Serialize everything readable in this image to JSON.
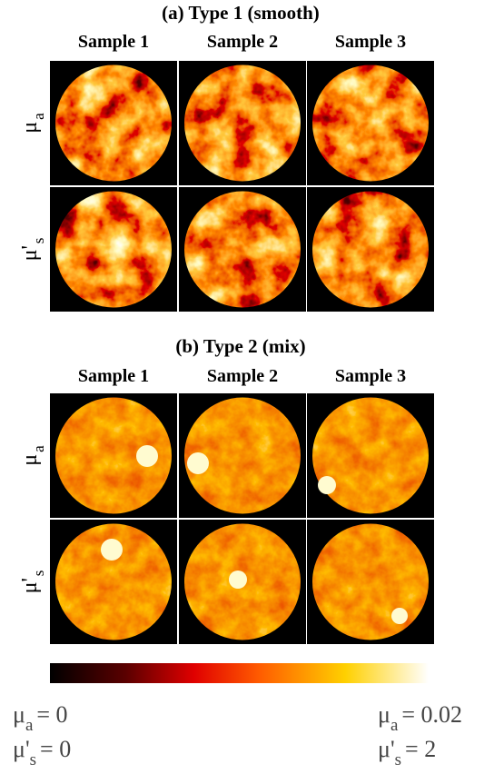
{
  "panels": [
    {
      "title": "(a) Type 1 (smooth)",
      "columns": [
        "Sample 1",
        "Sample 2",
        "Sample 3"
      ],
      "rows": [
        {
          "symbol": "μ",
          "subscript": "a"
        },
        {
          "symbol": "μ'",
          "subscript": "s"
        }
      ]
    },
    {
      "title": "(b) Type 2 (mix)",
      "columns": [
        "Sample 1",
        "Sample 2",
        "Sample 3"
      ],
      "rows": [
        {
          "symbol": "μ",
          "subscript": "a"
        },
        {
          "symbol": "μ'",
          "subscript": "s"
        }
      ]
    }
  ],
  "colorbar": {
    "min_labels": [
      {
        "symbol": "μ",
        "subscript": "a",
        "text": "= 0"
      },
      {
        "symbol": "μ'",
        "subscript": "s",
        "text": "= 0"
      }
    ],
    "max_labels": [
      {
        "symbol": "μ",
        "subscript": "a",
        "text": "= 0.02"
      },
      {
        "symbol": "μ'",
        "subscript": "s",
        "text": "= 2"
      }
    ]
  }
}
